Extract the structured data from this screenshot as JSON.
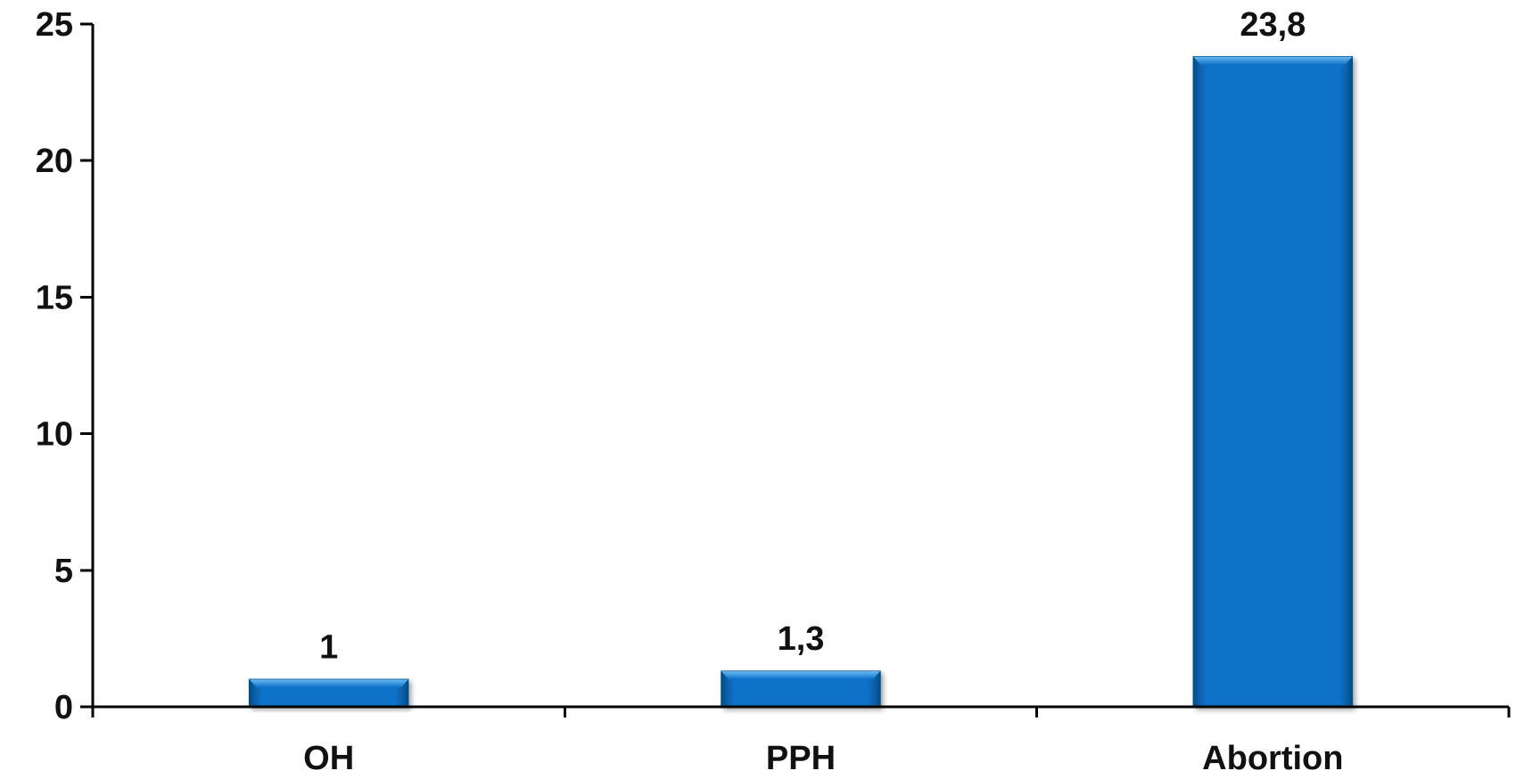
{
  "chart_data": {
    "type": "bar",
    "title": "",
    "xlabel": "",
    "ylabel": "",
    "categories": [
      "OH",
      "PPH",
      "Abortion"
    ],
    "values": [
      1,
      1.3,
      23.8
    ],
    "data_labels": [
      "1",
      "1,3",
      "23,8"
    ],
    "ylim": [
      0,
      25
    ],
    "yticks": [
      0,
      5,
      10,
      15,
      20,
      25
    ],
    "ytick_labels": [
      "0",
      "5",
      "10",
      "15",
      "20",
      "25"
    ],
    "grid": false,
    "legend": "none",
    "colors": {
      "bar": "#0a72c8",
      "bar_light": "#4aa3ea",
      "bar_dark": "#054f8c",
      "axis": "#000000"
    }
  }
}
